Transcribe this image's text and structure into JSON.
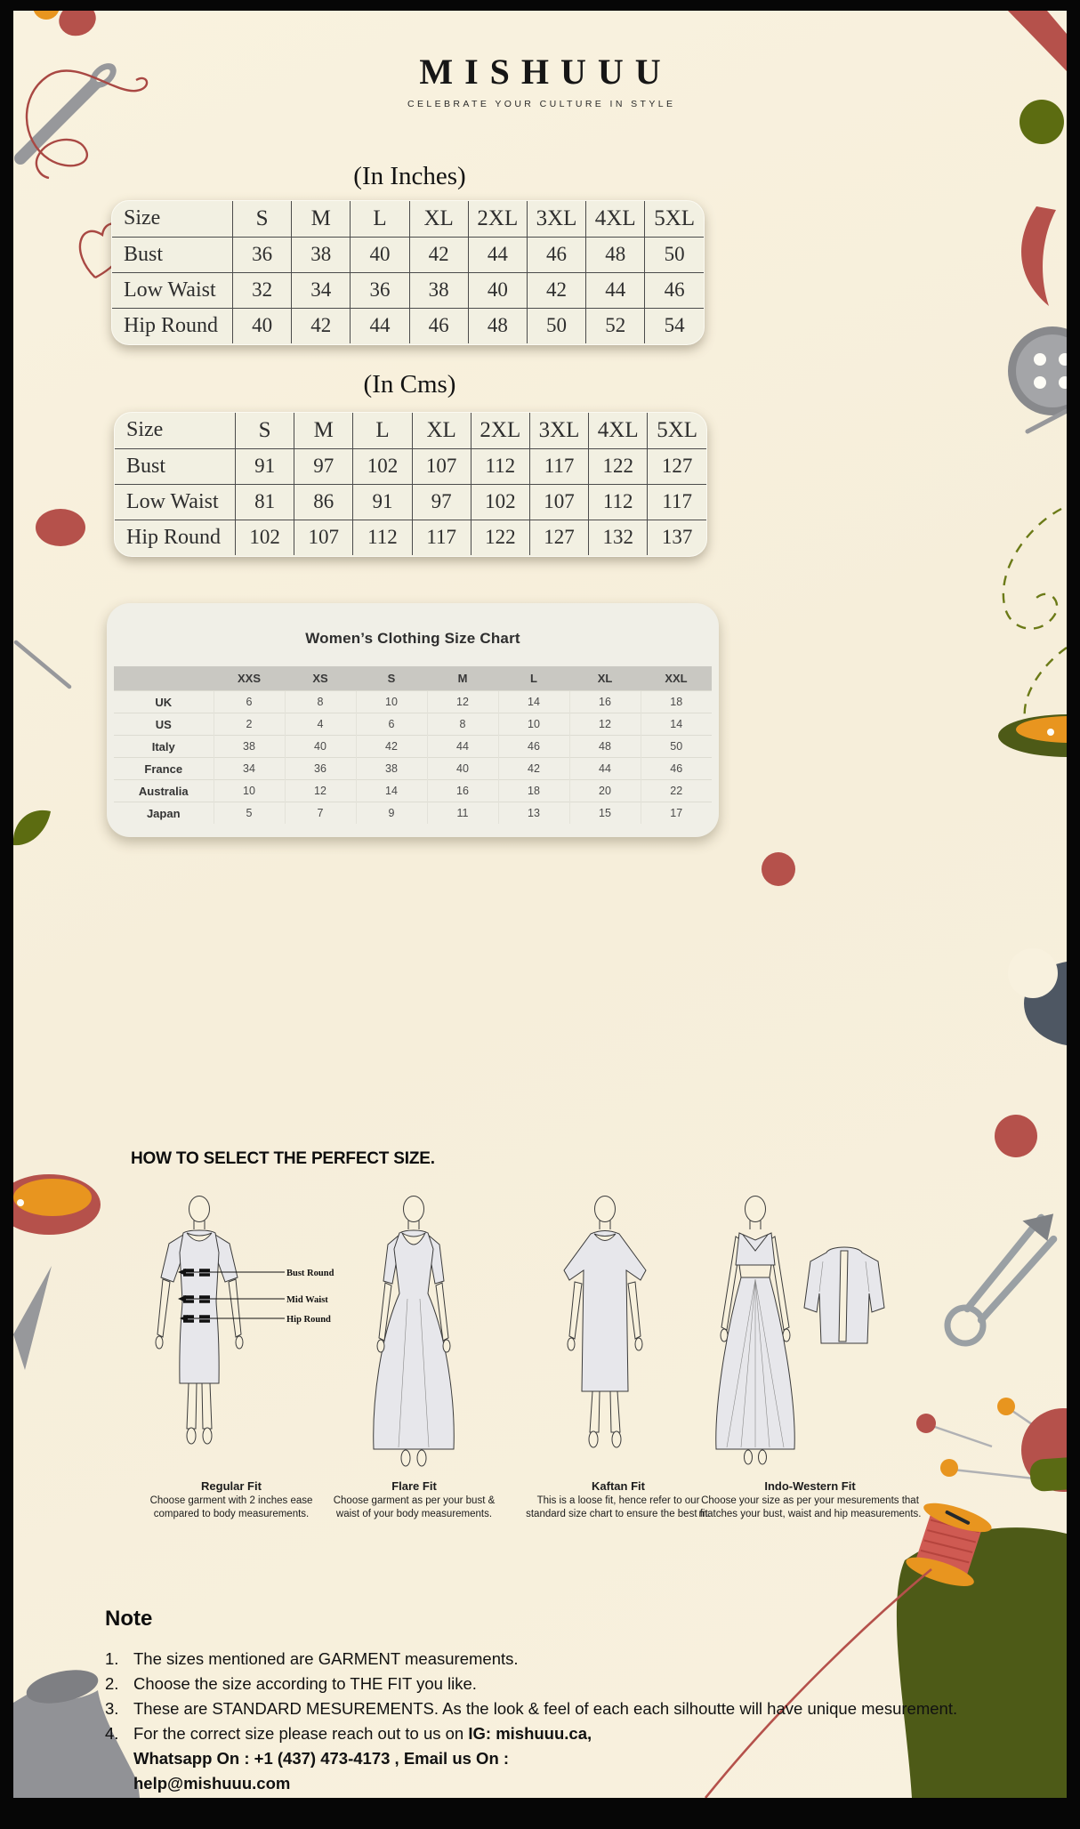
{
  "brand": {
    "name": "MISHUUU",
    "tagline": "CELEBRATE YOUR CULTURE IN STYLE"
  },
  "inches_table": {
    "title": "(In Inches)",
    "header": [
      "Size",
      "S",
      "M",
      "L",
      "XL",
      "2XL",
      "3XL",
      "4XL",
      "5XL"
    ],
    "rows": [
      {
        "label": "Bust",
        "values": [
          36,
          38,
          40,
          42,
          44,
          46,
          48,
          50
        ]
      },
      {
        "label": "Low Waist",
        "values": [
          32,
          34,
          36,
          38,
          40,
          42,
          44,
          46
        ]
      },
      {
        "label": "Hip Round",
        "values": [
          40,
          42,
          44,
          46,
          48,
          50,
          52,
          54
        ]
      }
    ]
  },
  "cms_table": {
    "title": "(In Cms)",
    "header": [
      "Size",
      "S",
      "M",
      "L",
      "XL",
      "2XL",
      "3XL",
      "4XL",
      "5XL"
    ],
    "rows": [
      {
        "label": "Bust",
        "values": [
          91,
          97,
          102,
          107,
          112,
          117,
          122,
          127
        ]
      },
      {
        "label": "Low Waist",
        "values": [
          81,
          86,
          91,
          97,
          102,
          107,
          112,
          117
        ]
      },
      {
        "label": "Hip Round",
        "values": [
          102,
          107,
          112,
          117,
          122,
          127,
          132,
          137
        ]
      }
    ]
  },
  "intl_chart": {
    "title": "Women’s Clothing Size Chart",
    "header": [
      "",
      "XXS",
      "XS",
      "S",
      "M",
      "L",
      "XL",
      "XXL"
    ],
    "rows": [
      {
        "label": "UK",
        "values": [
          6,
          8,
          10,
          12,
          14,
          16,
          18
        ]
      },
      {
        "label": "US",
        "values": [
          2,
          4,
          6,
          8,
          10,
          12,
          14
        ]
      },
      {
        "label": "Italy",
        "values": [
          38,
          40,
          42,
          44,
          46,
          48,
          50
        ]
      },
      {
        "label": "France",
        "values": [
          34,
          36,
          38,
          40,
          42,
          44,
          46
        ]
      },
      {
        "label": "Australia",
        "values": [
          10,
          12,
          14,
          16,
          18,
          20,
          22
        ]
      },
      {
        "label": "Japan",
        "values": [
          5,
          7,
          9,
          11,
          13,
          15,
          17
        ]
      }
    ]
  },
  "fit_section": {
    "heading": "HOW TO SELECT THE PERFECT SIZE.",
    "measure_labels": [
      "Bust Round",
      "Mid Waist",
      "Hip Round"
    ],
    "fits": [
      {
        "name": "Regular Fit",
        "desc": "Choose garment with 2 inches ease compared to body measurements."
      },
      {
        "name": "Flare Fit",
        "desc": "Choose garment as per your bust & waist of your body measurements."
      },
      {
        "name": "Kaftan Fit",
        "desc": "This is a loose fit, hence refer to our standard size chart to ensure the best fit."
      },
      {
        "name": "Indo-Western Fit",
        "desc": "Choose your size as per your mesurements that matches your bust, waist and hip measurements."
      }
    ]
  },
  "note": {
    "heading": "Note",
    "items": [
      {
        "num": "1.",
        "text": "The sizes mentioned are GARMENT measurements."
      },
      {
        "num": "2.",
        "text": "Choose the size according to THE FIT you like."
      },
      {
        "num": "3.",
        "text": "These are STANDARD MESUREMENTS. As the look & feel of each each silhoutte will have unique mesurement."
      },
      {
        "num": "4.",
        "text": "For the correct size please reach out to us on ",
        "bold": "IG: mishuuu.ca, Whatsapp On : +1 (437) 473-4173 , Email us On : help@mishuuu.com"
      }
    ]
  },
  "decorations": [
    "needle-icon",
    "thread-icon",
    "heart-thread-icon",
    "button-icon",
    "stitch-icon",
    "spool-icon",
    "pin-cushion-icon",
    "safety-pin-icon",
    "mannequin-icon",
    "leaf-icon",
    "hoop-disc-icon",
    "dot-icon"
  ],
  "colors": {
    "background": "#f8f1dd",
    "frame": "#000000",
    "accent_red": "#b5514b",
    "accent_orange": "#e8951f",
    "accent_olive": "#5c6c11",
    "mound_olive": "#4d5a17",
    "gray": "#97989b",
    "header_gray": "#c9c8c2"
  }
}
